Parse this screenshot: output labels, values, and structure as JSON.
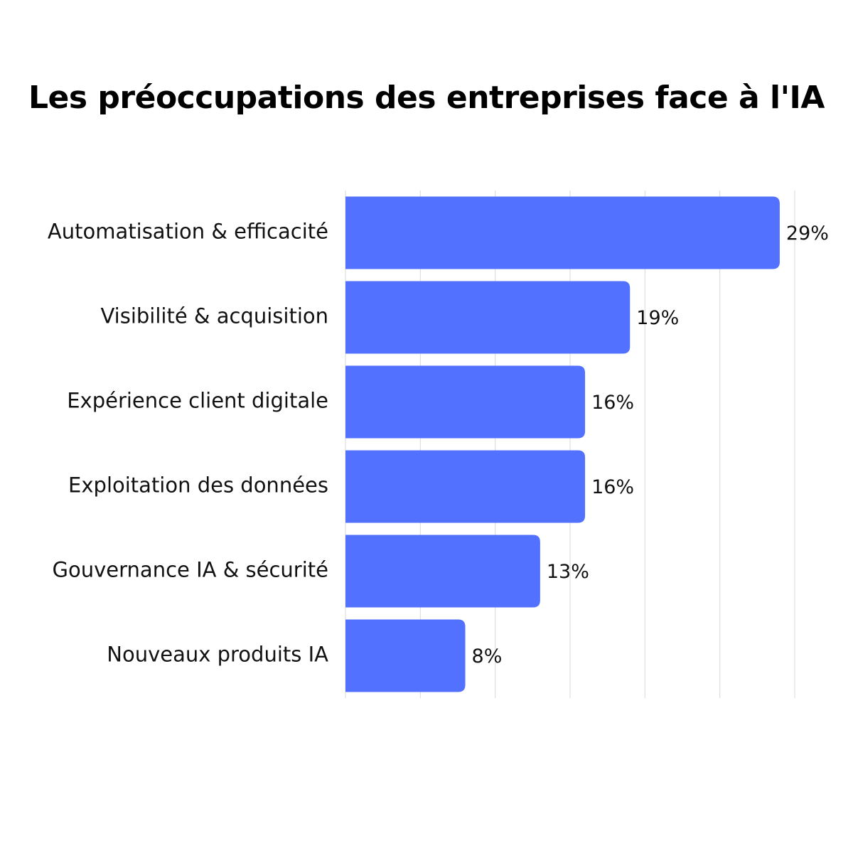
{
  "chart_data": {
    "type": "bar",
    "orientation": "horizontal",
    "title": "Les préoccupations des entreprises face à l'IA",
    "categories": [
      "Automatisation & efficacité",
      "Visibilité & acquisition",
      "Expérience client digitale",
      "Exploitation des données",
      "Gouvernance IA & sécurité",
      "Nouveaux produits IA"
    ],
    "values": [
      29,
      19,
      16,
      16,
      13,
      8
    ],
    "value_labels": [
      "29%",
      "19%",
      "16%",
      "16%",
      "13%",
      "8%"
    ],
    "xlim": [
      0,
      30
    ],
    "grid": true,
    "legend": "none",
    "colors": {
      "bar": "#5271ff",
      "grid": "#d9d9d9",
      "text": "#111111"
    }
  }
}
